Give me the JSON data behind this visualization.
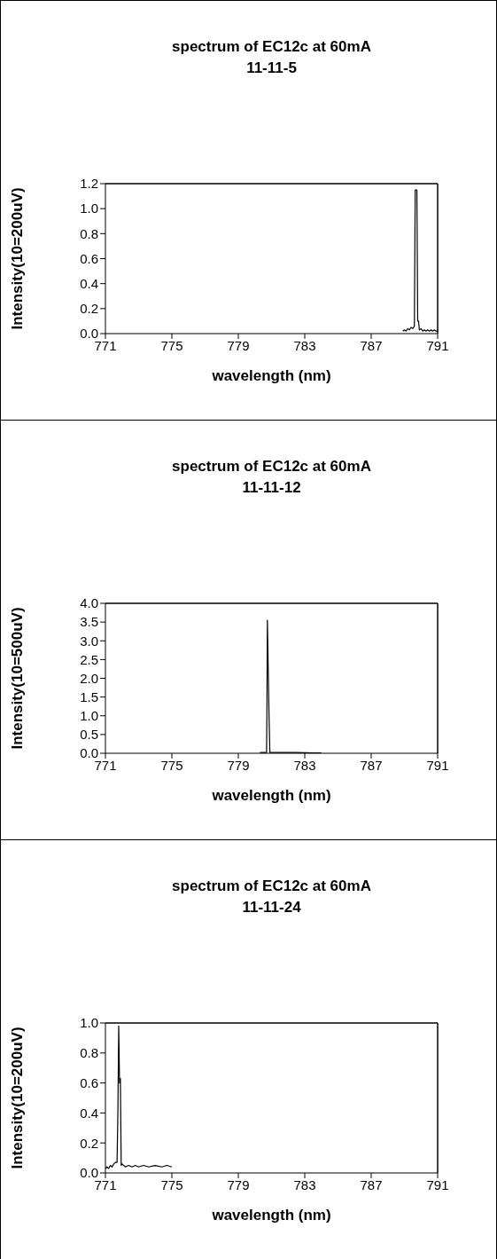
{
  "chart_data": [
    {
      "type": "line",
      "title": "spectrum of EC12c at 60mA",
      "subtitle": "11-11-5",
      "xlabel": "wavelength (nm)",
      "ylabel": "Intensity(10=200uV)",
      "marker": "none",
      "xlim": [
        771,
        791
      ],
      "xticks": [
        771,
        775,
        779,
        783,
        787,
        791
      ],
      "ylim": [
        0,
        1.2
      ],
      "yticks": [
        {
          "value": 0,
          "label": "0.0"
        },
        {
          "value": 0.2,
          "label": "0.2"
        },
        {
          "value": 0.4,
          "label": "0.4"
        },
        {
          "value": 0.6,
          "label": "0.6"
        },
        {
          "value": 0.8,
          "label": "0.8"
        },
        {
          "value": 1.0,
          "label": "1.0"
        },
        {
          "value": 1.2,
          "label": "1.2"
        }
      ],
      "series": [
        {
          "color": "#000000",
          "x": [
            788.9,
            789.0,
            789.1,
            789.2,
            789.3,
            789.4,
            789.5,
            789.6,
            789.65,
            789.75,
            789.8,
            789.85,
            789.9,
            790.0,
            790.1,
            790.2,
            790.3,
            790.4,
            790.5,
            790.6,
            790.7,
            790.8,
            790.9,
            791.0
          ],
          "values": [
            0.02,
            0.03,
            0.02,
            0.04,
            0.03,
            0.05,
            0.04,
            0.06,
            1.15,
            1.15,
            0.1,
            0.1,
            0.03,
            0.04,
            0.02,
            0.03,
            0.02,
            0.03,
            0.02,
            0.03,
            0.02,
            0.03,
            0.02,
            0.02
          ]
        }
      ]
    },
    {
      "type": "line",
      "title": "spectrum of EC12c at 60mA",
      "subtitle": "11-11-12",
      "xlabel": "wavelength (nm)",
      "ylabel": "Intensity(10=500uV)",
      "marker": "none",
      "xlim": [
        771,
        791
      ],
      "xticks": [
        771,
        775,
        779,
        783,
        787,
        791
      ],
      "ylim": [
        0,
        4.0
      ],
      "yticks": [
        {
          "value": 0,
          "label": "0.0"
        },
        {
          "value": 0.5,
          "label": "0.5"
        },
        {
          "value": 1.0,
          "label": "1.0"
        },
        {
          "value": 1.5,
          "label": "1.5"
        },
        {
          "value": 2.0,
          "label": "2.0"
        },
        {
          "value": 2.5,
          "label": "2.5"
        },
        {
          "value": 3.0,
          "label": "3.0"
        },
        {
          "value": 3.5,
          "label": "3.5"
        },
        {
          "value": 4.0,
          "label": "4.0"
        }
      ],
      "series": [
        {
          "color": "#000000",
          "x": [
            780.3,
            780.6,
            780.7,
            780.72,
            780.75,
            780.85,
            780.9,
            781.5,
            782.5,
            783.5,
            784.0
          ],
          "values": [
            0.02,
            0.02,
            0.02,
            1.0,
            3.55,
            1.0,
            0.02,
            0.02,
            0.02,
            0.01,
            0.01
          ]
        }
      ]
    },
    {
      "type": "line",
      "title": "spectrum of EC12c at 60mA",
      "subtitle": "11-11-24",
      "xlabel": "wavelength (nm)",
      "ylabel": "Intensity(10=200uV)",
      "marker": "none",
      "xlim": [
        771,
        791
      ],
      "xticks": [
        771,
        775,
        779,
        783,
        787,
        791
      ],
      "ylim": [
        0,
        1.0
      ],
      "yticks": [
        {
          "value": 0,
          "label": "0.0"
        },
        {
          "value": 0.2,
          "label": "0.2"
        },
        {
          "value": 0.4,
          "label": "0.4"
        },
        {
          "value": 0.6,
          "label": "0.6"
        },
        {
          "value": 0.8,
          "label": "0.8"
        },
        {
          "value": 1.0,
          "label": "1.0"
        }
      ],
      "series": [
        {
          "color": "#000000",
          "x": [
            771.0,
            771.1,
            771.2,
            771.3,
            771.4,
            771.5,
            771.6,
            771.7,
            771.75,
            771.8,
            771.85,
            771.9,
            771.95,
            772.0,
            772.2,
            772.4,
            772.6,
            772.8,
            773.0,
            773.3,
            773.6,
            774.0,
            774.4,
            774.7,
            775.0
          ],
          "values": [
            0.03,
            0.04,
            0.03,
            0.05,
            0.04,
            0.06,
            0.07,
            0.07,
            0.4,
            0.98,
            0.6,
            0.63,
            0.05,
            0.06,
            0.04,
            0.05,
            0.04,
            0.05,
            0.04,
            0.05,
            0.04,
            0.05,
            0.04,
            0.05,
            0.04
          ]
        }
      ]
    }
  ]
}
